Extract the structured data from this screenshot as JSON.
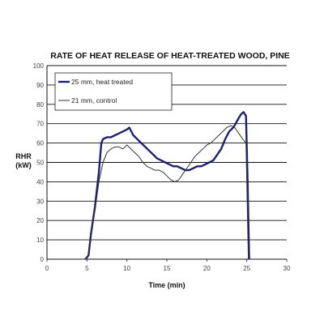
{
  "chart_data": {
    "type": "line",
    "title": "RATE OF HEAT RELEASE OF HEAT-TREATED WOOD, PINE",
    "ylabel_lines": [
      "RHR",
      "(kW)"
    ],
    "xlabel": "Time (min)",
    "xlim": [
      0,
      30
    ],
    "ylim": [
      0,
      100
    ],
    "xticks": [
      0,
      5,
      10,
      15,
      20,
      25,
      30
    ],
    "yticks": [
      0,
      10,
      20,
      30,
      40,
      50,
      60,
      70,
      80,
      90,
      100
    ],
    "grid": "horizontal",
    "legend_position": "top-left",
    "series": [
      {
        "name": "25 mm, heat treated",
        "color": "#1c1f7a",
        "x": [
          4.8,
          5.2,
          5.5,
          6.0,
          6.5,
          6.8,
          7.0,
          7.5,
          8.0,
          8.5,
          9.0,
          9.5,
          10.0,
          10.3,
          10.8,
          11.3,
          11.8,
          12.3,
          12.8,
          13.3,
          13.8,
          14.3,
          14.8,
          15.3,
          15.8,
          16.3,
          16.8,
          17.3,
          17.8,
          18.3,
          18.8,
          19.3,
          19.8,
          20.3,
          20.8,
          21.3,
          21.8,
          22.3,
          22.8,
          23.3,
          23.6,
          24.0,
          24.3,
          24.6,
          24.9,
          25.1,
          25.3
        ],
        "y": [
          0,
          2,
          13,
          27,
          45,
          60,
          62,
          63,
          63,
          64,
          65,
          66,
          67,
          68,
          64,
          62,
          60,
          58,
          56,
          54,
          52,
          51,
          50,
          49,
          48,
          48,
          47,
          46,
          46,
          47,
          48,
          48,
          49,
          50,
          51,
          54,
          57,
          62,
          66,
          68,
          70,
          73,
          75,
          76,
          74,
          40,
          0
        ]
      },
      {
        "name": "21 mm, control",
        "color": "#333333",
        "x": [
          4.8,
          5.2,
          5.5,
          6.0,
          6.5,
          7.0,
          7.5,
          8.0,
          8.5,
          9.0,
          9.5,
          10.0,
          10.5,
          11.0,
          11.5,
          12.0,
          12.5,
          13.0,
          13.5,
          14.0,
          14.5,
          15.0,
          15.5,
          16.0,
          16.5,
          17.0,
          17.5,
          18.0,
          18.5,
          19.0,
          19.5,
          20.0,
          20.5,
          21.0,
          21.5,
          22.0,
          22.5,
          23.0,
          23.5,
          24.0,
          24.5,
          24.9,
          25.2
        ],
        "y": [
          0,
          2,
          13,
          25,
          40,
          50,
          55,
          57,
          58,
          58,
          57,
          59,
          57,
          55,
          53,
          50,
          48,
          47,
          46,
          46,
          45,
          43,
          41,
          40,
          41,
          44,
          47,
          50,
          53,
          55,
          57,
          59,
          60,
          62,
          64,
          66,
          68,
          69,
          68,
          65,
          62,
          60,
          0
        ]
      }
    ]
  }
}
